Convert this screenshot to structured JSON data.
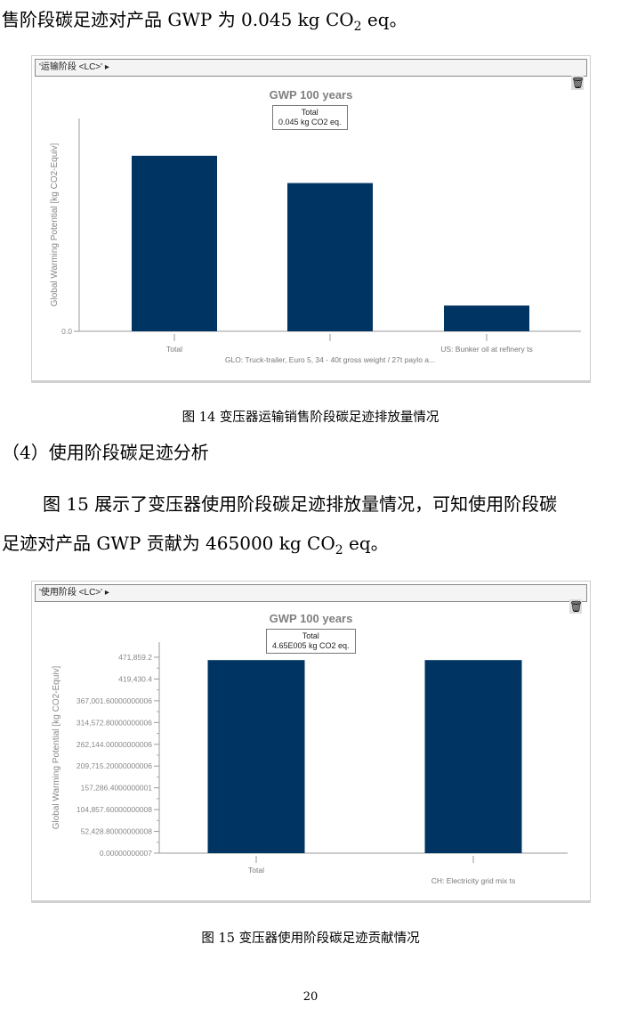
{
  "text": {
    "line1_a": "售阶段碳足迹对产品 GWP 为 0.045 kg CO",
    "line1_sub": "2",
    "line1_b": " eq。",
    "caption14": "图 14  变压器运输销售阶段碳足迹排放量情况",
    "heading4": "（4）使用阶段碳足迹分析",
    "para1": "图 15 展示了变压器使用阶段碳足迹排放量情况，可知使用阶段碳",
    "para2_a": "足迹对产品 GWP 贡献为 465000 kg CO",
    "para2_sub": "2",
    "para2_b": " eq。",
    "caption15": "图 15  变压器使用阶段碳足迹贡献情况",
    "page_number": "20"
  },
  "chart1": {
    "toolbar": "'运输阶段 <LC>' ▸",
    "title": "GWP 100 years",
    "tooltip_line1": "Total",
    "tooltip_line2": "0.045 kg CO2 eq.",
    "icon": "trash-icon"
  },
  "chart2": {
    "toolbar": "'使用阶段 <LC>' ▸",
    "title": "GWP 100 years",
    "tooltip_line1": "Total",
    "tooltip_line2": "4.65E005 kg CO2 eq.",
    "icon": "trash-icon"
  },
  "chart_data": [
    {
      "type": "bar",
      "title": "GWP 100 years",
      "ylabel": "Global Warming Potential [kg CO2-Equiv]",
      "categories": [
        "Total",
        "GLO: Truck-trailer, Euro 5, 34 - 40t gross weight / 27t paylo a...",
        "US: Bunker oil at refinery ts"
      ],
      "values": [
        0.045,
        0.038,
        0.0066
      ],
      "yticks": [
        "0.0"
      ],
      "ylim": [
        0,
        0.05
      ],
      "color": "#003462",
      "grid": false
    },
    {
      "type": "bar",
      "title": "GWP 100 years",
      "ylabel": "Global Warming Potential [kg CO2-Equiv]",
      "categories": [
        "Total",
        "CH: Electricity grid mix ts"
      ],
      "values": [
        465000,
        465000
      ],
      "yticks": [
        "0.00000000007",
        "52,428.80000000008",
        "104,857.60000000008",
        "157,286.4000000001",
        "209,715.20000000006",
        "262,144.00000000006",
        "314,572.80000000006",
        "367,001.60000000006",
        "419,430.4",
        "471,859.2"
      ],
      "ytick_values": [
        0,
        52428.8,
        104857.6,
        157286.4,
        209715.2,
        262144,
        314572.8,
        367001.6,
        419430.4,
        471859.2
      ],
      "ylim": [
        0,
        471859.2
      ],
      "color": "#003462",
      "grid": false
    }
  ]
}
